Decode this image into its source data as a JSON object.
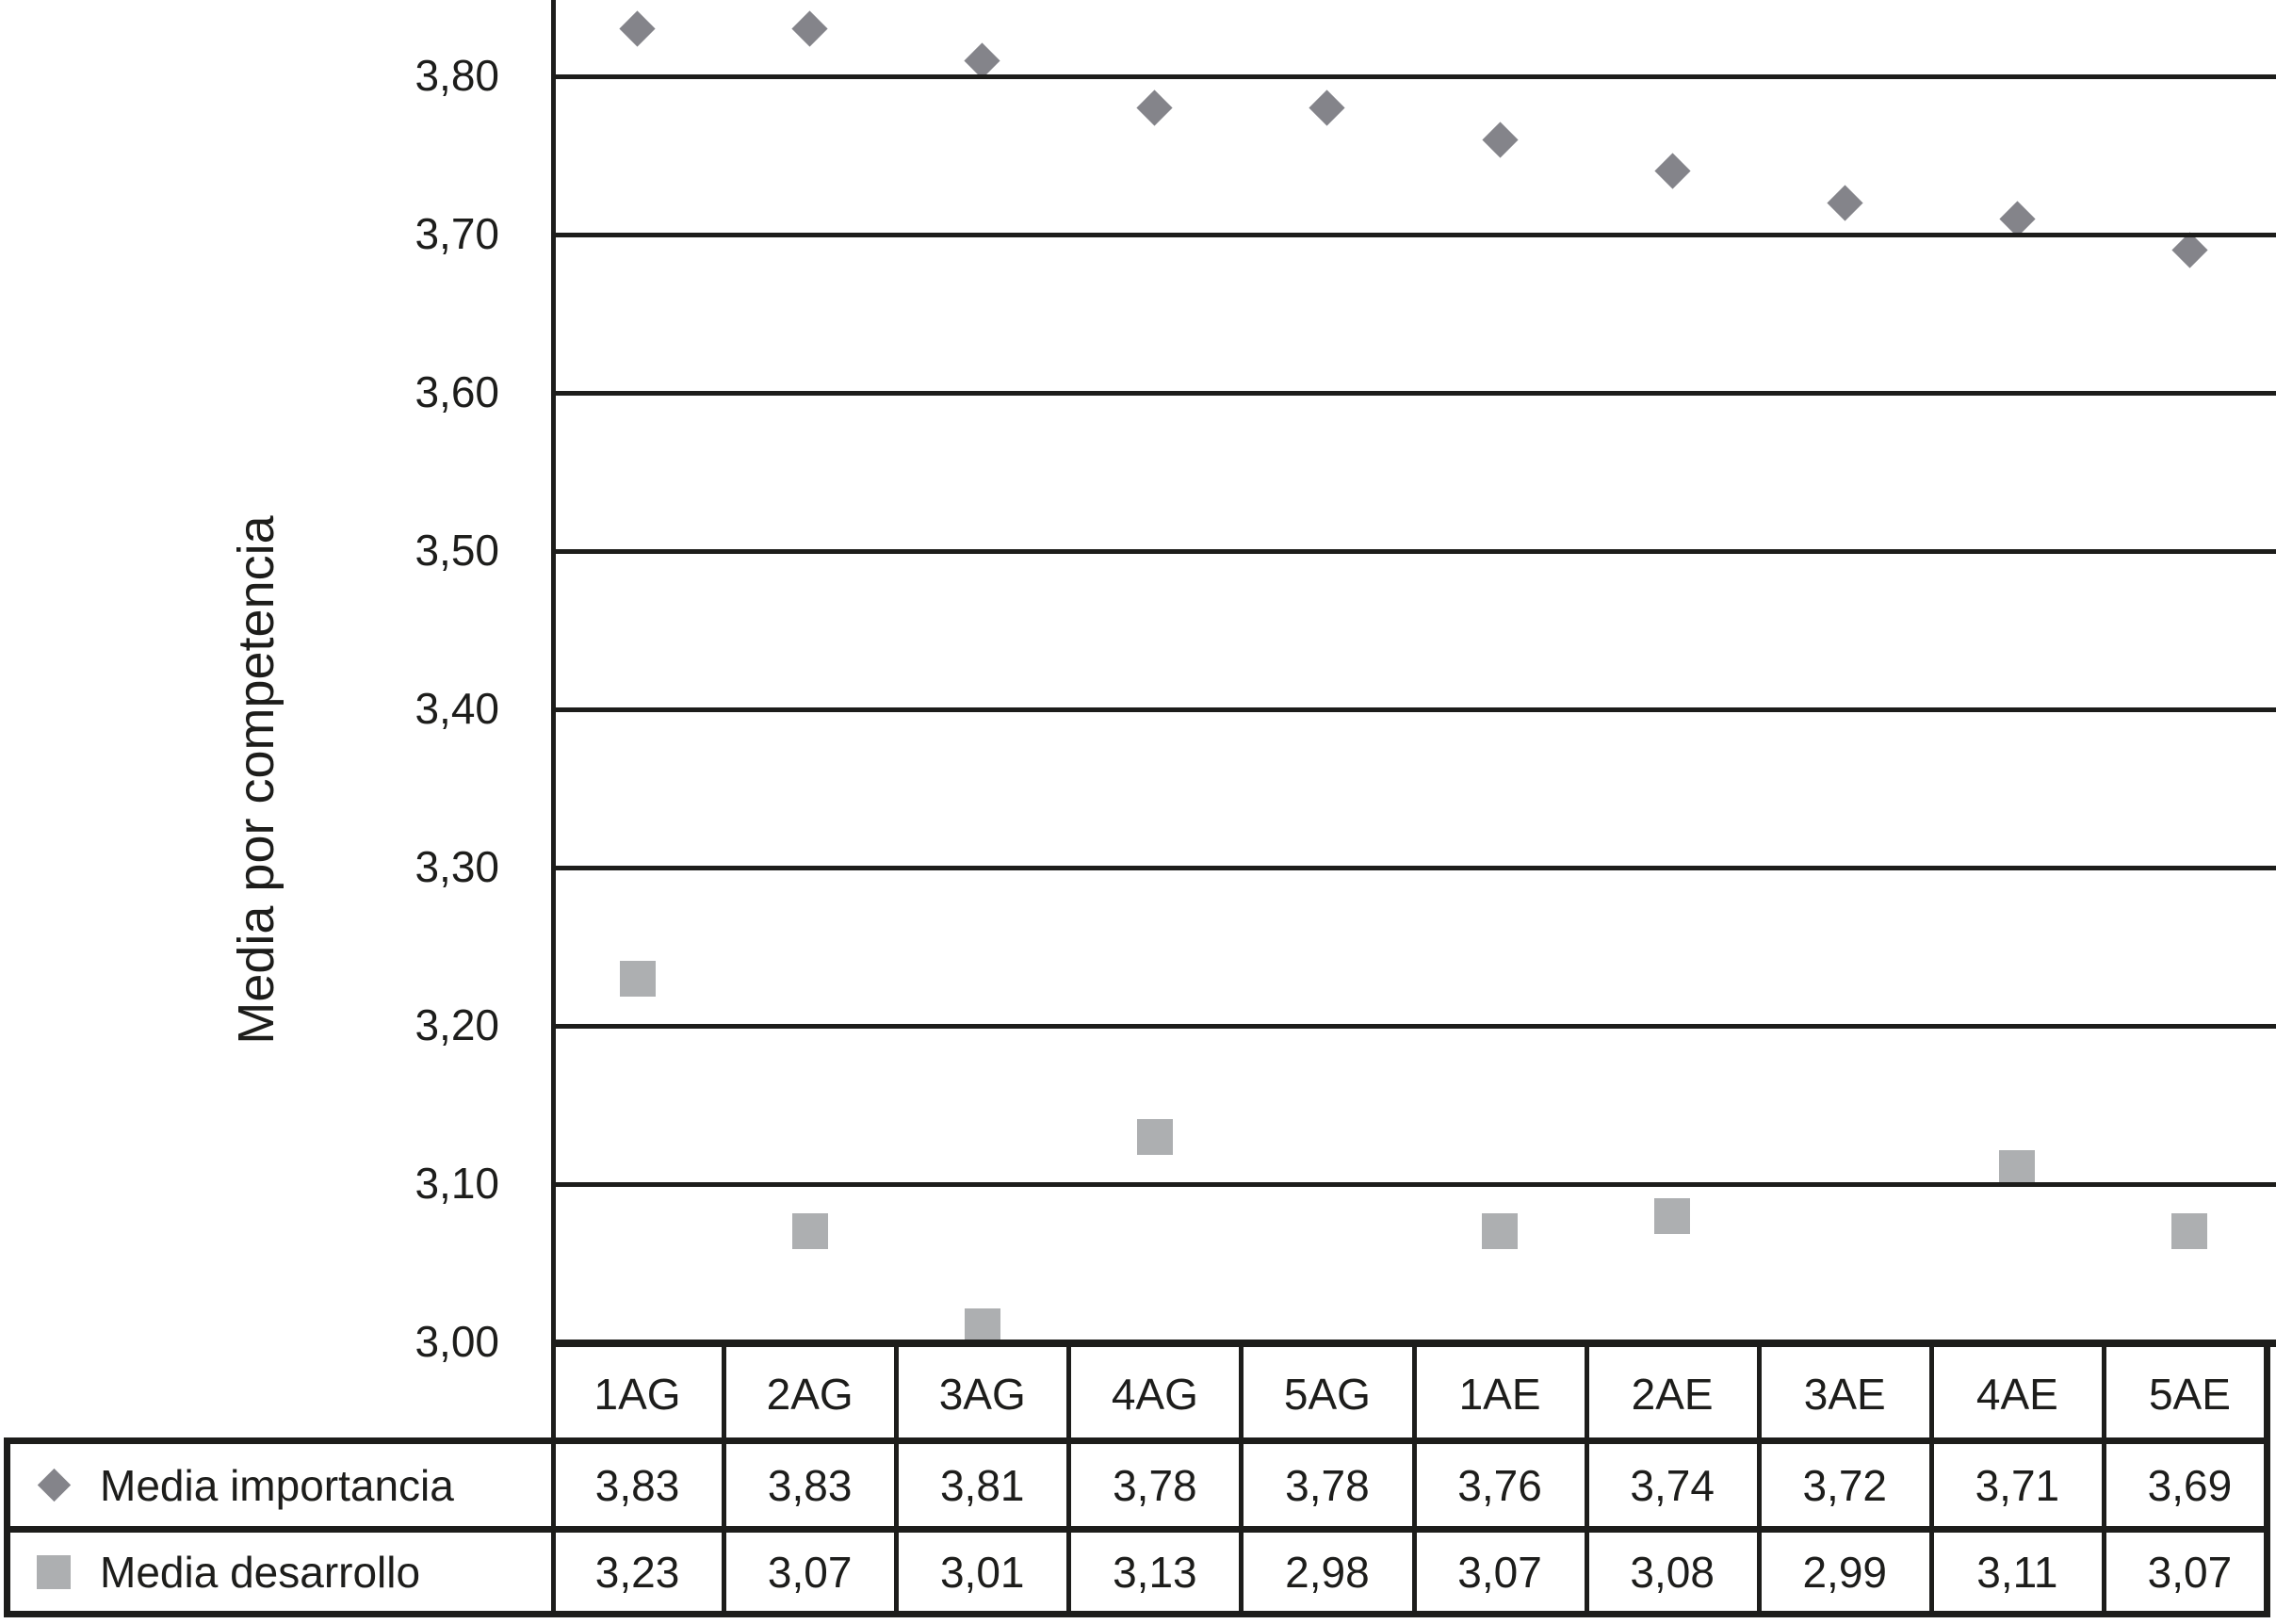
{
  "chart_data": {
    "type": "scatter",
    "title": "",
    "xlabel": "",
    "ylabel": "Media por competencia",
    "categories": [
      "1AG",
      "2AG",
      "3AG",
      "4AG",
      "5AG",
      "1AE",
      "2AE",
      "3AE",
      "4AE",
      "5AE"
    ],
    "series": [
      {
        "name": "Media importancia",
        "marker": "diamond",
        "color": "#84848a",
        "values": [
          3.83,
          3.83,
          3.81,
          3.78,
          3.78,
          3.76,
          3.74,
          3.72,
          3.71,
          3.69
        ],
        "display": [
          "3,83",
          "3,83",
          "3,81",
          "3,78",
          "3,78",
          "3,76",
          "3,74",
          "3,72",
          "3,71",
          "3,69"
        ]
      },
      {
        "name": "Media desarrollo",
        "marker": "square",
        "color": "#adafb1",
        "values": [
          3.23,
          3.07,
          3.01,
          3.13,
          2.98,
          3.07,
          3.08,
          2.99,
          3.11,
          3.07
        ],
        "display": [
          "3,23",
          "3,07",
          "3,01",
          "3,13",
          "2,98",
          "3,07",
          "3,08",
          "2,99",
          "3,11",
          "3,07"
        ]
      }
    ],
    "yticks": [
      {
        "value": 3.8,
        "label": "3,80"
      },
      {
        "value": 3.7,
        "label": "3,70"
      },
      {
        "value": 3.6,
        "label": "3,60"
      },
      {
        "value": 3.5,
        "label": "3,50"
      },
      {
        "value": 3.4,
        "label": "3,40"
      },
      {
        "value": 3.3,
        "label": "3,30"
      },
      {
        "value": 3.2,
        "label": "3,20"
      },
      {
        "value": 3.1,
        "label": "3,10"
      },
      {
        "value": 3.0,
        "label": "3,00"
      }
    ],
    "ylim_visible": [
      3.0,
      3.85
    ],
    "grid": "horizontal-only",
    "legend_position": "table-rows-left",
    "number_format": "decimal-comma"
  },
  "colors": {
    "line": "#1d1d1b",
    "text": "#1d1d1b",
    "diamond": "#84848a",
    "square": "#adafb1",
    "background": "#ffffff"
  }
}
